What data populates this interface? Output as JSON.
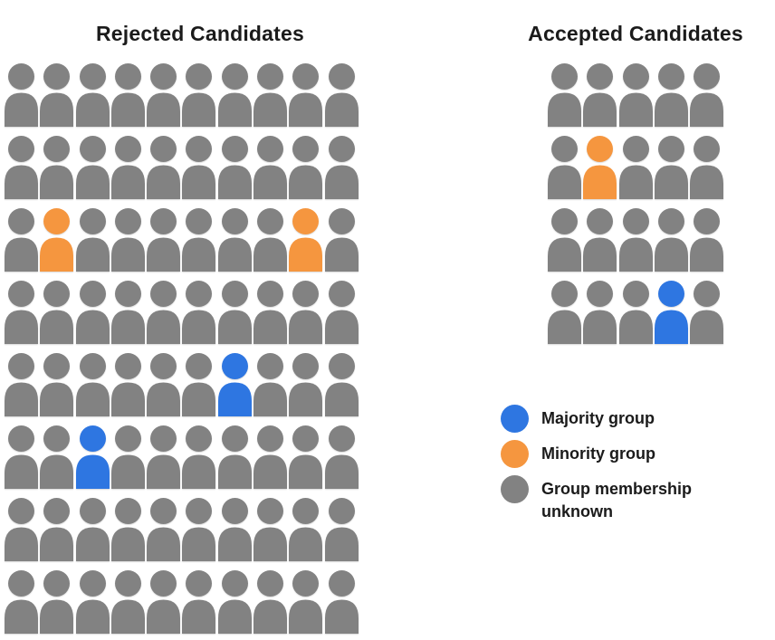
{
  "left_panel": {
    "title": "Rejected Candidates"
  },
  "right_panel": {
    "title": "Accepted Candidates"
  },
  "colors": {
    "majority": "#2E76E1",
    "minority": "#F5963F",
    "unknown": "#828282",
    "text": "#1B1B1B"
  },
  "cell_codes": {
    "u": "unknown",
    "m": "minority",
    "M": "majority"
  },
  "grids": {
    "rejected": {
      "rows": 8,
      "cols": 10,
      "cells": [
        "uuuuuuuuuu",
        "uuuuuuuuuu",
        "umuuuuuumu",
        "uuuuuuuuuu",
        "uuuuuuMuuu",
        "uuMuuuuuuu",
        "uuuuuuuuuu",
        "uuuuuuuuuu"
      ]
    },
    "accepted": {
      "rows": 4,
      "cols": 5,
      "cells": [
        "uuuuu",
        "umuuu",
        "uuuuu",
        "uuuMu"
      ]
    }
  },
  "legend": {
    "items": [
      {
        "key": "majority",
        "label": "Majority group"
      },
      {
        "key": "minority",
        "label": "Minority group"
      },
      {
        "key": "unknown",
        "label": "Group membership unknown"
      }
    ]
  },
  "chart_data": {
    "type": "pictogram",
    "panels": [
      {
        "title": "Rejected Candidates",
        "rows": 8,
        "cols": 10,
        "total_people": 80,
        "counts": {
          "majority_group": 2,
          "minority_group": 2,
          "group_membership_unknown": 76
        },
        "highlighted_positions_row_col": {
          "minority": [
            [
              3,
              2
            ],
            [
              3,
              9
            ]
          ],
          "majority": [
            [
              5,
              7
            ],
            [
              6,
              3
            ]
          ]
        }
      },
      {
        "title": "Accepted Candidates",
        "rows": 4,
        "cols": 5,
        "total_people": 20,
        "counts": {
          "majority_group": 1,
          "minority_group": 1,
          "group_membership_unknown": 18
        },
        "highlighted_positions_row_col": {
          "minority": [
            [
              2,
              2
            ]
          ],
          "majority": [
            [
              4,
              4
            ]
          ]
        }
      }
    ],
    "legend_entries": [
      "Majority group",
      "Minority group",
      "Group membership unknown"
    ],
    "legend_position": "right column, below Accepted Candidates grid",
    "grid_on": false
  }
}
